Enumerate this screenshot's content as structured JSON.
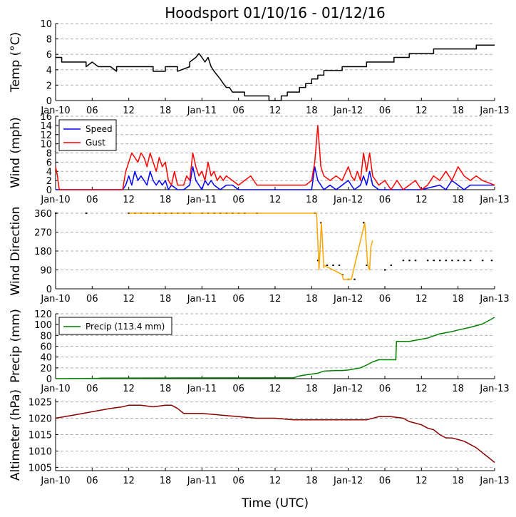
{
  "chart_data": {
    "title": "Hoodsport 01/10/16 - 01/12/16",
    "xlabel": "Time (UTC)",
    "x_range_hours": [
      0,
      72
    ],
    "x_ticks": [
      {
        "hour": 0,
        "label": "Jan-10"
      },
      {
        "hour": 6,
        "label": "06"
      },
      {
        "hour": 12,
        "label": "12"
      },
      {
        "hour": 18,
        "label": "18"
      },
      {
        "hour": 24,
        "label": "Jan-11"
      },
      {
        "hour": 30,
        "label": "06"
      },
      {
        "hour": 36,
        "label": "12"
      },
      {
        "hour": 42,
        "label": "18"
      },
      {
        "hour": 48,
        "label": "Jan-12"
      },
      {
        "hour": 54,
        "label": "06"
      },
      {
        "hour": 60,
        "label": "12"
      },
      {
        "hour": 66,
        "label": "18"
      },
      {
        "hour": 72,
        "label": "Jan-13"
      }
    ],
    "panels": [
      {
        "id": "temp",
        "type": "line",
        "ylabel": "Temp (°C)",
        "ylim": [
          0,
          10
        ],
        "yticks": [
          0,
          2,
          4,
          6,
          8,
          10
        ],
        "grid": true,
        "series": [
          {
            "name": "Temp",
            "color": "#000000",
            "x": [
              0,
              1,
              1,
              5,
              5,
              6,
              7,
              7,
              9,
              10,
              10,
              12,
              12,
              16,
              16,
              18,
              18,
              20,
              20,
              22,
              22,
              23,
              23.5,
              24,
              24.5,
              25,
              25.5,
              26,
              26.5,
              27,
              27.5,
              28,
              28.5,
              29,
              30,
              31,
              31,
              35,
              35,
              37,
              37,
              38,
              38,
              40,
              40,
              41,
              41,
              42,
              42,
              43,
              43,
              44,
              44,
              47,
              47,
              51,
              51,
              55.5,
              55.5,
              58,
              58,
              60,
              60,
              62,
              62,
              65,
              65,
              69,
              69,
              72
            ],
            "y": [
              5.6,
              5.6,
              5.0,
              5.0,
              4.4,
              5.0,
              4.4,
              4.4,
              4.4,
              3.8,
              4.4,
              4.4,
              4.4,
              4.4,
              3.8,
              3.8,
              4.4,
              4.4,
              3.8,
              4.4,
              5.0,
              5.6,
              6.1,
              5.6,
              5.0,
              5.6,
              4.4,
              3.8,
              3.3,
              2.8,
              2.2,
              1.7,
              1.7,
              1.1,
              1.1,
              1.1,
              0.6,
              0.6,
              0.0,
              0.0,
              0.6,
              0.6,
              1.1,
              1.1,
              1.7,
              1.7,
              2.2,
              2.2,
              2.8,
              2.8,
              3.3,
              3.3,
              3.9,
              3.9,
              4.4,
              4.4,
              5.0,
              5.0,
              5.6,
              5.6,
              6.1,
              6.1,
              6.1,
              6.1,
              6.7,
              6.7,
              6.7,
              6.7,
              7.2,
              7.2
            ]
          }
        ]
      },
      {
        "id": "wind",
        "type": "line",
        "ylabel": "Wind (mph)",
        "ylim": [
          0,
          16
        ],
        "yticks": [
          0,
          2,
          4,
          6,
          8,
          10,
          12,
          14,
          16
        ],
        "grid": true,
        "legend": "top-left",
        "series": [
          {
            "name": "Speed",
            "color": "#0000ff",
            "x": [
              0,
              11,
              11.5,
              12,
              12.5,
              13,
              13.5,
              14,
              14.5,
              15,
              15.5,
              16,
              16.5,
              17,
              17.5,
              18,
              18.5,
              19,
              20,
              21,
              22,
              22.5,
              23,
              23.5,
              24,
              24.5,
              25,
              25.5,
              26,
              27,
              28,
              29,
              30,
              34,
              35,
              38,
              42,
              42.5,
              43,
              43.5,
              44,
              45,
              46,
              47,
              48,
              48.5,
              49,
              50,
              50.5,
              51,
              51.5,
              52,
              53,
              60,
              63,
              64,
              65,
              66,
              67,
              68,
              72
            ],
            "y": [
              0,
              0,
              1,
              3,
              1,
              4,
              2,
              3,
              2,
              1,
              4,
              2,
              1,
              2,
              1,
              2,
              0,
              1,
              0,
              0,
              1,
              5,
              2,
              1,
              0,
              2,
              1,
              2,
              1,
              0,
              1,
              1,
              0,
              0,
              0,
              0,
              0,
              5,
              2,
              1,
              0,
              1,
              0,
              1,
              2,
              1,
              0,
              1,
              3,
              1,
              4,
              1,
              0,
              0,
              1,
              0,
              2,
              1,
              0,
              1,
              1
            ]
          },
          {
            "name": "Gust",
            "color": "#ff0000",
            "x": [
              0,
              0.3,
              0.6,
              11,
              11.5,
              12,
              12.5,
              13,
              13.5,
              14,
              14.5,
              15,
              15.5,
              16,
              16.5,
              17,
              17.5,
              18,
              18.5,
              19,
              19.5,
              20,
              21,
              21.5,
              22,
              22.5,
              23,
              23.5,
              24,
              24.5,
              25,
              25.5,
              26,
              26.5,
              27,
              27.5,
              28,
              29,
              30,
              31,
              32,
              33,
              41,
              42,
              42.5,
              43,
              43.5,
              44,
              45,
              46,
              47,
              48,
              48.5,
              49,
              49.5,
              50,
              50.5,
              51,
              51.5,
              52,
              53,
              54,
              55,
              56,
              57,
              58,
              59,
              60,
              61,
              62,
              63,
              64,
              65,
              66,
              67,
              68,
              69,
              70,
              72
            ],
            "y": [
              5,
              3,
              0,
              0,
              4,
              6,
              8,
              7,
              6,
              8,
              7,
              5,
              8,
              6,
              4,
              7,
              5,
              6,
              2,
              1,
              4,
              1,
              1,
              3,
              2,
              8,
              5,
              3,
              4,
              2,
              6,
              3,
              4,
              2,
              3,
              2,
              3,
              2,
              1,
              2,
              3,
              1,
              1,
              2,
              6,
              14,
              5,
              3,
              2,
              3,
              2,
              5,
              3,
              2,
              4,
              2,
              8,
              4,
              8,
              3,
              1,
              2,
              0,
              2,
              0,
              1,
              2,
              0,
              1,
              3,
              2,
              4,
              2,
              5,
              3,
              2,
              3,
              2,
              1
            ]
          }
        ]
      },
      {
        "id": "direction",
        "type": "scatter",
        "ylabel": "Wind Direction",
        "ylim": [
          0,
          360
        ],
        "yticks": [
          0,
          90,
          180,
          270,
          360
        ],
        "grid": true,
        "series": [
          {
            "name": "Direction",
            "color": "#000000",
            "x": [
              0,
              5,
              12,
              13,
              14,
              15,
              16,
              17,
              18,
              19,
              20,
              21,
              22,
              24,
              25,
              26,
              27,
              28,
              29,
              30,
              31,
              33,
              42.5,
              43,
              43.5,
              44.5,
              45.5,
              46.5,
              47,
              48,
              49,
              50.5,
              51,
              54,
              55,
              57,
              58,
              59,
              61,
              62,
              63,
              64,
              65,
              66,
              67,
              68,
              70,
              71.5
            ],
            "y": [
              360,
              360,
              360,
              360,
              360,
              360,
              360,
              360,
              360,
              360,
              360,
              360,
              360,
              360,
              360,
              360,
              360,
              360,
              360,
              360,
              360,
              360,
              360,
              135,
              315,
              112,
              112,
              112,
              68,
              45,
              45,
              315,
              112,
              90,
              112,
              135,
              135,
              135,
              135,
              135,
              135,
              135,
              135,
              135,
              135,
              135,
              135,
              135
            ]
          },
          {
            "name": "Direction line",
            "color": "#ffa500",
            "x": [
              12,
              26,
              42.8,
              43.2,
              43.6,
              44,
              44,
              47,
              47.2,
              48.5,
              50.7,
              51.2,
              51.5,
              51.7,
              52
            ],
            "y": [
              360,
              360,
              360,
              90,
              315,
              100,
              112,
              68,
              45,
              45,
              315,
              112,
              90,
              200,
              230
            ]
          }
        ]
      },
      {
        "id": "precip",
        "type": "line",
        "ylabel": "Precip (mm)",
        "ylim": [
          0,
          120
        ],
        "yticks": [
          0,
          20,
          40,
          60,
          80,
          100,
          120
        ],
        "grid": true,
        "legend": "top-left",
        "series": [
          {
            "name": "Precip (113.4 mm)",
            "color": "#008000",
            "x": [
              0,
              7,
              7.2,
              15,
              39,
              40,
              41,
              43,
              44,
              46,
              47,
              48,
              49,
              50,
              51,
              52,
              53,
              54,
              55,
              55.8,
              55.9,
              58,
              59,
              60,
              61,
              62,
              63,
              65,
              66,
              68,
              70,
              72
            ],
            "y": [
              0,
              0.5,
              1,
              1.2,
              1.5,
              5,
              7,
              10,
              14,
              15,
              15,
              16,
              18,
              20,
              25,
              31,
              35,
              35,
              35,
              35,
              69,
              69,
              71,
              73,
              75,
              79,
              83,
              87,
              90,
              95,
              101,
              113.4
            ]
          }
        ]
      },
      {
        "id": "altimeter",
        "type": "line",
        "ylabel": "Altimeter (hPa)",
        "ylim": [
          1004,
          1026
        ],
        "yticks": [
          1005,
          1010,
          1015,
          1020,
          1025
        ],
        "grid": true,
        "series": [
          {
            "name": "Altimeter",
            "color": "#8b0000",
            "x": [
              0,
              3,
              6,
              9,
              11,
              12,
              14,
              16,
              18,
              19,
              20,
              21,
              24,
              27,
              30,
              33,
              36,
              39,
              42,
              45,
              48,
              51,
              53,
              55,
              57,
              58,
              59,
              60,
              61,
              62,
              63,
              64,
              65,
              66,
              67,
              68,
              69,
              70,
              71,
              72
            ],
            "y": [
              1020,
              1021,
              1022,
              1023,
              1023.5,
              1024,
              1024,
              1023.5,
              1024,
              1024,
              1023,
              1021.5,
              1021.5,
              1021,
              1020.5,
              1020,
              1020,
              1019.5,
              1019.5,
              1019.5,
              1019.5,
              1019.5,
              1020.5,
              1020.5,
              1020,
              1019,
              1018.5,
              1018,
              1017,
              1016.5,
              1015,
              1014,
              1014,
              1013.5,
              1013,
              1012,
              1011,
              1009.5,
              1008,
              1006.5
            ]
          }
        ]
      }
    ]
  }
}
